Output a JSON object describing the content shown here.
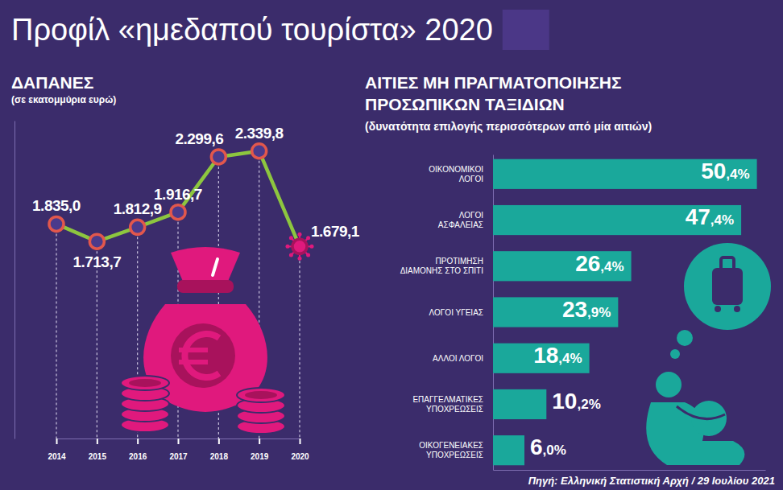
{
  "title": "Προφίλ «ημεδαπού τουρίστα» 2020",
  "source": "Πηγή: Ελληνική Στατιστική Αρχή  / 29 Ιουλίου 2021",
  "chart_data": [
    {
      "type": "line",
      "title": "ΔΑΠΑΝΕΣ",
      "subtitle": "(σε εκατομμύρια ευρώ)",
      "categories": [
        "2014",
        "2015",
        "2016",
        "2017",
        "2018",
        "2019",
        "2020"
      ],
      "values": [
        1835.0,
        1713.7,
        1812.9,
        1916.7,
        2299.6,
        2339.8,
        1679.1
      ],
      "value_labels": [
        "1.835,0",
        "1.713,7",
        "1.812,9",
        "1.916,7",
        "2.299,6",
        "2.339,8",
        "1.679,1"
      ],
      "color": "#8dc63f",
      "marker": "circle",
      "ylim": [
        350,
        2550
      ],
      "data_labels": true,
      "tick_labels": "x"
    },
    {
      "type": "bar",
      "orientation": "horizontal",
      "title": "ΑΙΤΙΕΣ ΜΗ ΠΡΑΓΜΑΤΟΠΟΙΗΣΗΣ ΠΡΟΣΩΠΙΚΩΝ ΤΑΞΙΔΙΩΝ",
      "subtitle": "(δυνατότητα επιλογής περισσότερων από μία αιτιών)",
      "categories": [
        "ΟΙΚΟΝΟΜΙΚΟΙ ΛΟΓΟΙ",
        "ΛΟΓΟΙ ΑΣΦΑΛΕΙΑΣ",
        "ΠΡΟΤΙΜΗΣΗ ΔΙΑΜΟΝΗΣ ΣΤΟ ΣΠΙΤΙ",
        "ΛΟΓΟΙ ΥΓΕΙΑΣ",
        "ΑΛΛΟΙ ΛΟΓΟΙ",
        "ΕΠΑΓΓΕΛΜΑΤΙΚΕΣ ΥΠΟΧΡΕΩΣΕΙΣ",
        "ΟΙΚΟΓΕΝΕΙΑΚΕΣ ΥΠΟΧΡΕΩΣΕΙΣ"
      ],
      "values": [
        50.4,
        47.4,
        26.4,
        23.9,
        18.4,
        10.2,
        6.0
      ],
      "value_labels": [
        "50,4%",
        "47,4%",
        "26,4%",
        "23,9%",
        "18,4%",
        "10,2%",
        "6,0%"
      ],
      "color": "#1aa89b",
      "xlim": [
        0,
        52
      ],
      "data_labels": true,
      "tick_labels": "y"
    }
  ]
}
